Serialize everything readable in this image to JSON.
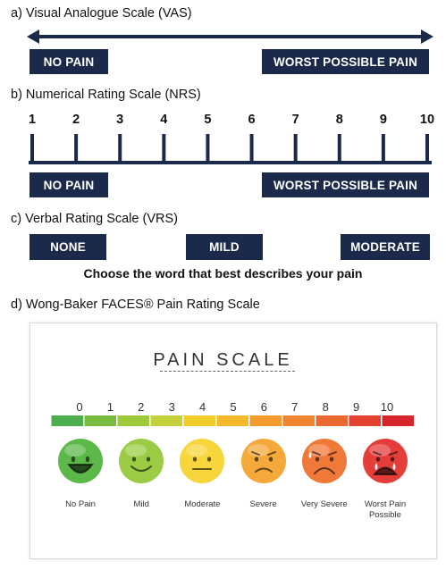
{
  "vas": {
    "heading": "a)  Visual Analogue Scale (VAS)",
    "left_label": "NO PAIN",
    "right_label": "WORST POSSIBLE PAIN",
    "color": "#1b2a4a"
  },
  "nrs": {
    "heading": "b)  Numerical Rating Scale (NRS)",
    "numbers": [
      "1",
      "2",
      "3",
      "4",
      "5",
      "6",
      "7",
      "8",
      "9",
      "10"
    ],
    "left_label": "NO PAIN",
    "right_label": "WORST POSSIBLE PAIN"
  },
  "vrs": {
    "heading": "c)  Verbal Rating Scale (VRS)",
    "words": [
      "NONE",
      "MILD",
      "MODERATE"
    ],
    "caption": "Choose the word that best describes your pain"
  },
  "faces": {
    "heading": "d)  Wong-Baker FACES® Pain Rating Scale",
    "title": "PAIN SCALE",
    "numbers": [
      "0",
      "1",
      "2",
      "3",
      "4",
      "5",
      "6",
      "7",
      "8",
      "9",
      "10"
    ],
    "bar_colors": [
      "#4cae4c",
      "#77bb41",
      "#9dc93b",
      "#c4d13a",
      "#f1cc2a",
      "#f5b82b",
      "#f39c2d",
      "#ef8530",
      "#ea6a32",
      "#e3412f",
      "#d6262d"
    ],
    "labels": [
      {
        "text": "No Pain",
        "icon": "happy-face-icon",
        "color": "#5cb848"
      },
      {
        "text": "Mild",
        "icon": "smiling-face-icon",
        "color": "#9ccc45"
      },
      {
        "text": "Moderate",
        "icon": "neutral-face-icon",
        "color": "#f6d63a"
      },
      {
        "text": "Severe",
        "icon": "frowning-face-icon",
        "color": "#f5a93a"
      },
      {
        "text": "Very Severe",
        "icon": "sad-face-icon",
        "color": "#f0793a"
      },
      {
        "text": "Worst Pain Possible",
        "icon": "crying-face-icon",
        "color": "#e53e3a"
      }
    ]
  }
}
